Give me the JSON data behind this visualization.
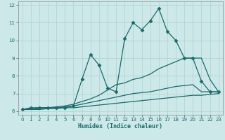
{
  "title": "",
  "xlabel": "Humidex (Indice chaleur)",
  "xlim": [
    -0.5,
    23.5
  ],
  "ylim": [
    5.8,
    12.2
  ],
  "yticks": [
    6,
    7,
    8,
    9,
    10,
    11,
    12
  ],
  "xticks": [
    0,
    1,
    2,
    3,
    4,
    5,
    6,
    7,
    8,
    9,
    10,
    11,
    12,
    13,
    14,
    15,
    16,
    17,
    18,
    19,
    20,
    21,
    22,
    23
  ],
  "bg_color": "#cce8e8",
  "grid_color": "#b0d0d0",
  "line_color": "#1a6b6b",
  "series": [
    {
      "x": [
        0,
        1,
        2,
        3,
        4,
        5,
        6,
        7,
        8,
        9,
        10,
        11,
        12,
        13,
        14,
        15,
        16,
        17,
        18,
        19,
        20,
        21,
        22,
        23
      ],
      "y": [
        6.1,
        6.2,
        6.2,
        6.2,
        6.2,
        6.2,
        6.3,
        7.8,
        9.2,
        8.6,
        7.3,
        7.1,
        10.1,
        11.0,
        10.6,
        11.1,
        11.8,
        10.5,
        10.0,
        9.0,
        9.0,
        7.7,
        7.1,
        7.1
      ],
      "marker": "D",
      "markersize": 2.5,
      "linewidth": 0.9
    },
    {
      "x": [
        0,
        1,
        2,
        3,
        4,
        5,
        6,
        7,
        8,
        9,
        10,
        11,
        12,
        13,
        14,
        15,
        16,
        17,
        18,
        19,
        20,
        21,
        22,
        23
      ],
      "y": [
        6.1,
        6.15,
        6.2,
        6.2,
        6.25,
        6.3,
        6.4,
        6.55,
        6.7,
        6.9,
        7.2,
        7.5,
        7.6,
        7.8,
        7.9,
        8.1,
        8.4,
        8.6,
        8.8,
        9.0,
        9.0,
        9.0,
        7.8,
        7.1
      ],
      "marker": null,
      "markersize": 0,
      "linewidth": 0.9
    },
    {
      "x": [
        0,
        1,
        2,
        3,
        4,
        5,
        6,
        7,
        8,
        9,
        10,
        11,
        12,
        13,
        14,
        15,
        16,
        17,
        18,
        19,
        20,
        21,
        22,
        23
      ],
      "y": [
        6.1,
        6.1,
        6.15,
        6.2,
        6.2,
        6.25,
        6.3,
        6.4,
        6.5,
        6.6,
        6.7,
        6.8,
        6.9,
        7.0,
        7.05,
        7.1,
        7.2,
        7.3,
        7.4,
        7.45,
        7.5,
        7.1,
        7.1,
        7.1
      ],
      "marker": null,
      "markersize": 0,
      "linewidth": 0.9
    },
    {
      "x": [
        0,
        1,
        2,
        3,
        4,
        5,
        6,
        7,
        8,
        9,
        10,
        11,
        12,
        13,
        14,
        15,
        16,
        17,
        18,
        19,
        20,
        21,
        22,
        23
      ],
      "y": [
        6.1,
        6.1,
        6.1,
        6.15,
        6.15,
        6.2,
        6.2,
        6.25,
        6.3,
        6.35,
        6.4,
        6.45,
        6.5,
        6.55,
        6.6,
        6.65,
        6.7,
        6.75,
        6.8,
        6.85,
        6.9,
        6.9,
        6.95,
        7.0
      ],
      "marker": null,
      "markersize": 0,
      "linewidth": 0.9
    }
  ]
}
